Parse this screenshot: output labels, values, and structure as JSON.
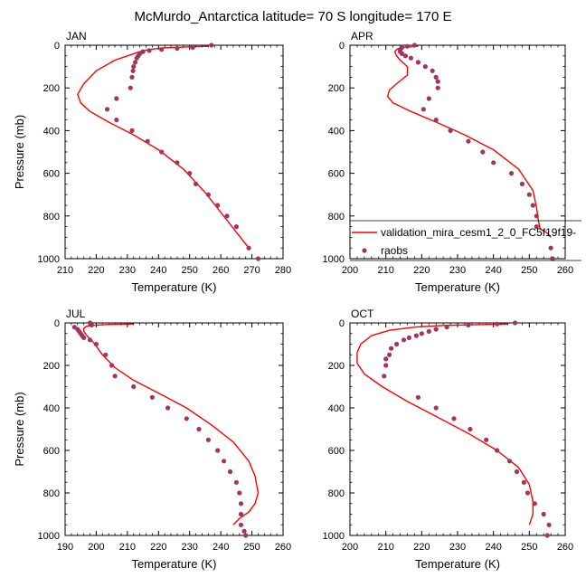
{
  "figure": {
    "title": "McMurdo_Antarctica  latitude= 70 S longitude= 170 E"
  },
  "legend": {
    "model_label": "validation_mira_cesm1_2_0_FC5f19f19-",
    "obs_label": "raobs"
  },
  "colors": {
    "model_line": "#ff0000",
    "obs_marker": "#a0365e"
  },
  "chart_data": [
    {
      "type": "line",
      "panel": "JAN",
      "xlabel": "Temperature (K)",
      "ylabel": "Pressure (mb)",
      "xlim": [
        210,
        280
      ],
      "ylim": [
        1000,
        0
      ],
      "xticks": [
        210,
        220,
        230,
        240,
        250,
        260,
        270,
        280
      ],
      "yticks": [
        0,
        200,
        400,
        600,
        800,
        1000
      ],
      "series": [
        {
          "name": "validation_mira_cesm1_2_0_FC5f19f19-",
          "x": [
            256,
            249,
            242,
            237,
            234,
            232,
            230,
            226,
            220,
            216,
            214,
            215,
            218,
            224,
            232,
            240,
            248,
            255,
            262,
            269
          ],
          "y": [
            5,
            8,
            12,
            20,
            30,
            40,
            50,
            70,
            120,
            180,
            230,
            270,
            310,
            360,
            420,
            490,
            580,
            690,
            820,
            950
          ]
        },
        {
          "name": "raobs",
          "x": [
            257,
            251,
            246,
            241,
            237,
            235,
            234,
            233.5,
            233,
            232.5,
            232,
            231.8,
            231.5,
            231,
            226.5,
            223.5,
            226.5,
            231.5,
            236.5,
            241,
            246,
            250,
            252,
            256,
            259,
            262,
            265,
            269,
            272
          ],
          "y": [
            0,
            10,
            15,
            20,
            25,
            30,
            40,
            50,
            60,
            80,
            100,
            120,
            150,
            200,
            250,
            300,
            350,
            400,
            450,
            500,
            550,
            600,
            650,
            700,
            750,
            800,
            850,
            950,
            1000
          ]
        }
      ]
    },
    {
      "type": "line",
      "panel": "APR",
      "xlabel": "Temperature (K)",
      "ylabel": "",
      "xlim": [
        200,
        260
      ],
      "ylim": [
        1000,
        0
      ],
      "xticks": [
        200,
        210,
        220,
        230,
        240,
        250,
        260
      ],
      "yticks": [
        0,
        200,
        400,
        600,
        800,
        1000
      ],
      "series": [
        {
          "name": "validation_mira_cesm1_2_0_FC5f19f19-",
          "x": [
            219,
            216,
            214,
            213,
            212.5,
            213,
            214,
            216,
            216,
            213,
            211,
            210.5,
            212,
            217,
            224,
            232,
            240,
            247,
            251,
            252,
            252.5,
            253,
            255,
            256
          ],
          "y": [
            5,
            8,
            12,
            20,
            30,
            50,
            70,
            100,
            140,
            180,
            210,
            240,
            270,
            310,
            360,
            420,
            490,
            580,
            680,
            760,
            820,
            860,
            880,
            900
          ]
        },
        {
          "name": "raobs",
          "x": [
            218,
            216,
            214.5,
            214,
            214,
            214.5,
            215.5,
            217,
            219,
            221,
            223,
            224,
            224.5,
            224.5,
            222,
            220.5,
            224,
            228,
            233,
            237,
            240,
            245,
            248,
            250,
            251,
            252,
            252,
            256,
            256.5
          ],
          "y": [
            0,
            5,
            10,
            20,
            30,
            40,
            50,
            60,
            80,
            100,
            120,
            150,
            170,
            200,
            250,
            300,
            350,
            400,
            450,
            500,
            550,
            600,
            650,
            700,
            750,
            800,
            850,
            950,
            1000
          ]
        }
      ]
    },
    {
      "type": "line",
      "panel": "JUL",
      "xlabel": "Temperature (K)",
      "ylabel": "Pressure (mb)",
      "xlim": [
        190,
        260
      ],
      "ylim": [
        1000,
        0
      ],
      "xticks": [
        190,
        200,
        210,
        220,
        230,
        240,
        250,
        260
      ],
      "yticks": [
        0,
        200,
        400,
        600,
        800,
        1000
      ],
      "series": [
        {
          "name": "validation_mira_cesm1_2_0_FC5f19f19-",
          "x": [
            212,
            205,
            200,
            197,
            196,
            196,
            197,
            199,
            202,
            206,
            212,
            220,
            229,
            237,
            244,
            249,
            251,
            252,
            251,
            249,
            246,
            244
          ],
          "y": [
            5,
            7,
            10,
            15,
            25,
            40,
            60,
            90,
            150,
            210,
            270,
            330,
            400,
            480,
            560,
            650,
            720,
            800,
            850,
            890,
            920,
            950
          ]
        },
        {
          "name": "raobs",
          "x": [
            198,
            198.5,
            193,
            194,
            194.5,
            195,
            195.5,
            196,
            198,
            200,
            203,
            205,
            206,
            212,
            218,
            223,
            229,
            233,
            236,
            239,
            241,
            243,
            245,
            246,
            246.5,
            246.5,
            246.5,
            247.5,
            248
          ],
          "y": [
            0,
            10,
            20,
            30,
            40,
            50,
            60,
            70,
            80,
            100,
            150,
            200,
            250,
            300,
            350,
            400,
            450,
            500,
            550,
            600,
            650,
            700,
            750,
            800,
            850,
            900,
            950,
            980,
            1000
          ]
        }
      ]
    },
    {
      "type": "line",
      "panel": "OCT",
      "xlabel": "Temperature (K)",
      "ylabel": "",
      "xlim": [
        200,
        260
      ],
      "ylim": [
        1000,
        0
      ],
      "xticks": [
        200,
        210,
        220,
        230,
        240,
        250,
        260
      ],
      "yticks": [
        0,
        200,
        400,
        600,
        800,
        1000
      ],
      "series": [
        {
          "name": "validation_mira_cesm1_2_0_FC5f19f19-",
          "x": [
            244,
            236,
            226,
            218,
            211,
            206,
            203,
            202,
            202,
            204,
            209,
            216,
            224,
            233,
            241,
            247,
            250,
            251,
            251,
            250
          ],
          "y": [
            5,
            8,
            12,
            20,
            35,
            60,
            100,
            140,
            190,
            240,
            300,
            370,
            440,
            520,
            600,
            680,
            760,
            840,
            900,
            950
          ]
        },
        {
          "name": "raobs",
          "x": [
            246,
            241,
            233,
            227,
            224,
            222,
            220,
            218.5,
            216.5,
            215,
            213,
            211.5,
            211,
            210,
            210,
            209.5,
            219,
            224,
            229,
            233.5,
            238,
            241,
            244.5,
            246.5,
            248.5,
            249.5,
            251.5,
            254,
            255.5,
            255
          ],
          "y": [
            0,
            5,
            10,
            20,
            30,
            40,
            50,
            60,
            70,
            80,
            100,
            120,
            150,
            170,
            200,
            250,
            350,
            400,
            450,
            500,
            550,
            600,
            650,
            700,
            750,
            800,
            850,
            900,
            950,
            1000
          ]
        }
      ]
    }
  ]
}
